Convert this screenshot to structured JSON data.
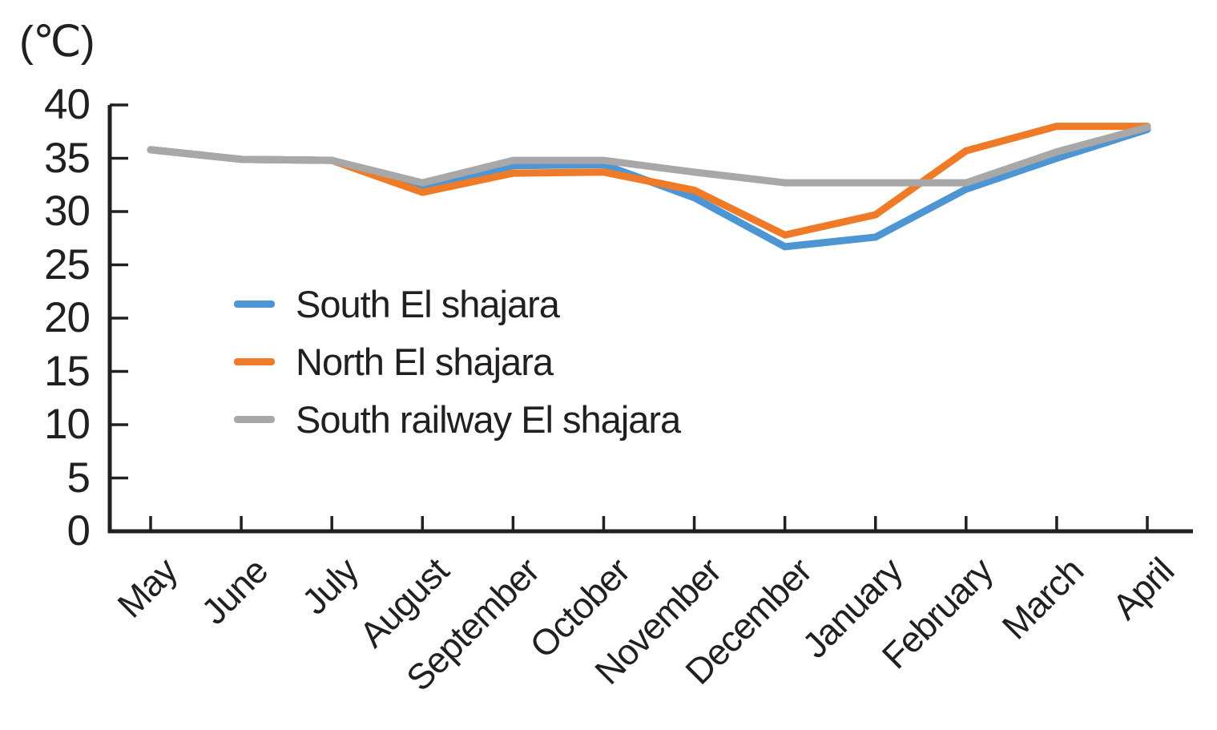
{
  "unit_label": "(℃)",
  "chart_data": {
    "type": "line",
    "title": "",
    "xlabel": "",
    "ylabel": "(℃)",
    "ylim": [
      0,
      40
    ],
    "yticks": [
      0,
      5,
      10,
      15,
      20,
      25,
      30,
      35,
      40
    ],
    "grid": false,
    "legend_position": "inside-left-middle",
    "axis_color": "#231F20",
    "categories": [
      "May",
      "June",
      "July",
      "August",
      "September",
      "October",
      "November",
      "December",
      "January",
      "February",
      "March",
      "April"
    ],
    "series": [
      {
        "name": "South El shajara",
        "color": "#4E95D3",
        "values": [
          35.8,
          34.9,
          34.8,
          32.3,
          34.3,
          34.4,
          31.3,
          26.7,
          27.6,
          32.1,
          35.0,
          37.7
        ]
      },
      {
        "name": "North El shajara",
        "color": "#EF7B28",
        "values": [
          35.8,
          34.9,
          34.8,
          31.8,
          33.6,
          33.7,
          32.0,
          27.8,
          29.7,
          35.7,
          38.0,
          38.0
        ]
      },
      {
        "name": "South railway El shajara",
        "color": "#A8A8A8",
        "values": [
          35.8,
          34.9,
          34.8,
          32.7,
          34.8,
          34.8,
          33.7,
          32.7,
          32.7,
          32.7,
          35.6,
          37.9
        ]
      }
    ]
  }
}
